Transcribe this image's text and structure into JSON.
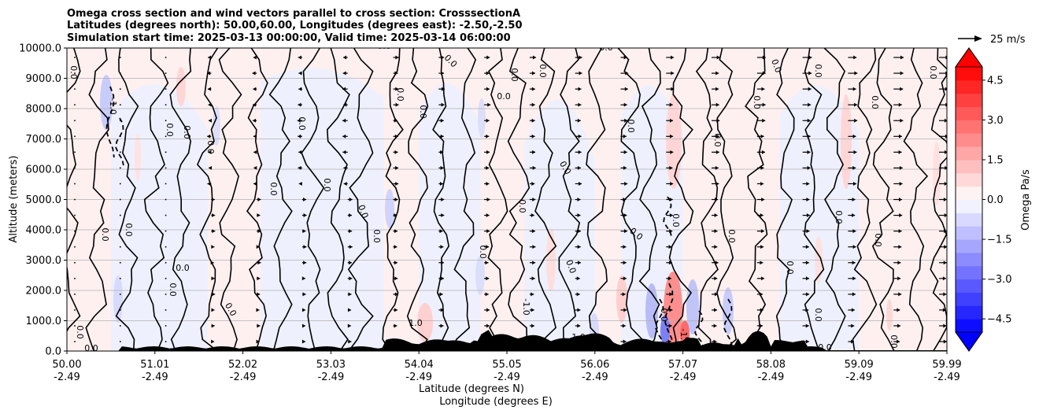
{
  "chart_data": {
    "type": "contour",
    "title_lines": [
      "Omega cross section and wind vectors parallel to cross section: CrosssectionA",
      "Latitudes (degrees north): 50.00,60.00, Longitudes (degrees east): -2.50,-2.50",
      "Simulation start time: 2025-03-13 00:00:00, Valid time: 2025-03-14 06:00:00"
    ],
    "ylabel": "Altitude (meters)",
    "xlabel_lines": [
      "Latitude (degrees N)",
      "Longitude (degrees E)"
    ],
    "y_ticks": [
      "0.0",
      "1000.0",
      "2000.0",
      "3000.0",
      "4000.0",
      "5000.0",
      "6000.0",
      "7000.0",
      "8000.0",
      "9000.0",
      "10000.0"
    ],
    "y_values": [
      0,
      1000,
      2000,
      3000,
      4000,
      5000,
      6000,
      7000,
      8000,
      9000,
      10000
    ],
    "ylim": [
      0,
      10000
    ],
    "x_ticks": [
      {
        "lat": "50.00",
        "lon": "-2.49"
      },
      {
        "lat": "51.01",
        "lon": "-2.49"
      },
      {
        "lat": "52.02",
        "lon": "-2.49"
      },
      {
        "lat": "53.03",
        "lon": "-2.49"
      },
      {
        "lat": "54.04",
        "lon": "-2.49"
      },
      {
        "lat": "55.05",
        "lon": "-2.49"
      },
      {
        "lat": "56.06",
        "lon": "-2.49"
      },
      {
        "lat": "57.07",
        "lon": "-2.49"
      },
      {
        "lat": "58.08",
        "lon": "-2.49"
      },
      {
        "lat": "59.09",
        "lon": "-2.49"
      },
      {
        "lat": "59.99",
        "lon": "-2.49"
      }
    ],
    "xlim": [
      50.0,
      59.99
    ],
    "grid": "horizontal",
    "colorbar": {
      "label": "Omega Pa/s",
      "ticks": [
        "−4.5",
        "−3.0",
        "−1.5",
        "0.0",
        "1.5",
        "3.0",
        "4.5"
      ],
      "tick_values": [
        -4.5,
        -3.0,
        -1.5,
        0.0,
        1.5,
        3.0,
        4.5
      ],
      "range": [
        -5.0,
        5.0
      ],
      "colormap": "bwr"
    },
    "quiver_key": "25 m/s",
    "contour_labels": [
      "0.0",
      "-1.0",
      "1.0"
    ],
    "colors": {
      "terrain": "#000000",
      "negative": "#0000ff",
      "positive": "#ff0000",
      "grid": "#b0b0b0"
    }
  }
}
